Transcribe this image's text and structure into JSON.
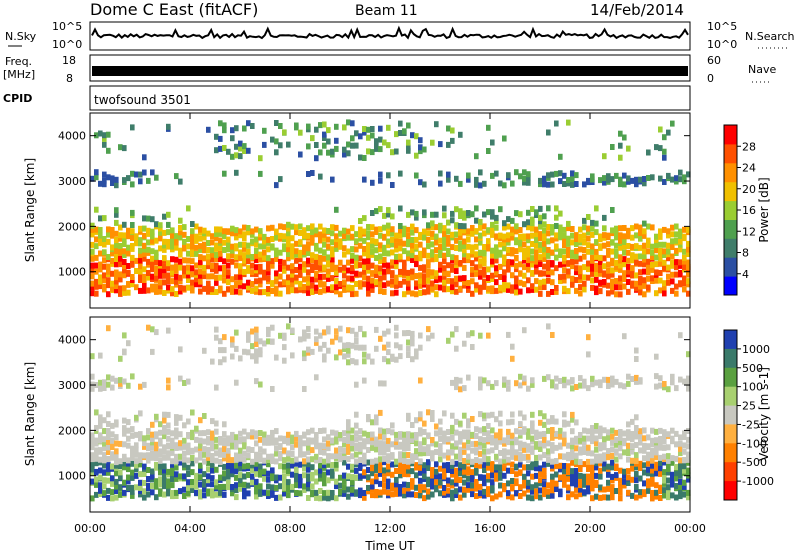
{
  "header": {
    "title": "Dome C East (fitACF)",
    "beam": "Beam 11",
    "date": "14/Feb/2014"
  },
  "panels": {
    "nsky": {
      "label": "N.Sky",
      "ticks": [
        "10^5",
        "10^0"
      ],
      "right_ticks": [
        "10^5",
        "10^0"
      ],
      "right_label": "N.Search"
    },
    "freq": {
      "label_line1": "Freq.",
      "label_line2": "[MHz]",
      "ticks": [
        "18",
        "8"
      ],
      "right_ticks": [
        "60",
        "0"
      ],
      "right_label": "Nave"
    },
    "cpid": {
      "label": "CPID",
      "text": "twofsound 3501"
    }
  },
  "colors": {
    "power": [
      "#0000ff",
      "#2b4fa3",
      "#3f7d6a",
      "#4fa04f",
      "#9acd32",
      "#f0c000",
      "#ff9000",
      "#ff5000",
      "#ff0000"
    ],
    "velocity": [
      "#2040b0",
      "#3a7a6a",
      "#5aa040",
      "#a8d070",
      "#c8c8c0",
      "#ffb040",
      "#ff8000",
      "#ff4000",
      "#ff0000"
    ]
  },
  "chart_data": [
    {
      "type": "heatmap",
      "title": "",
      "xlabel": "Time UT",
      "ylabel": "Slant Range [km]",
      "colorbar_label": "Power [dB]",
      "xlim": [
        0,
        24
      ],
      "ylim": [
        200,
        4500
      ],
      "x_ticks": [
        "00:00",
        "04:00",
        "08:00",
        "12:00",
        "16:00",
        "20:00",
        "00:00"
      ],
      "y_ticks": [
        "1000",
        "2000",
        "3000",
        "4000"
      ],
      "colorbar_ticks": [
        "4",
        "8",
        "12",
        "16",
        "20",
        "24",
        "28"
      ],
      "colorbar_range": [
        0,
        32
      ],
      "bands": [
        {
          "range_km": [
            500,
            1300
          ],
          "level": 26
        },
        {
          "range_km": [
            1300,
            2000
          ],
          "level": 20
        },
        {
          "range_km": [
            2000,
            2400
          ],
          "level": 12
        },
        {
          "range_km": [
            2900,
            3200
          ],
          "level": 8
        },
        {
          "range_km": [
            3500,
            4300
          ],
          "level": 10
        }
      ]
    },
    {
      "type": "heatmap",
      "title": "",
      "xlabel": "Time UT",
      "ylabel": "Slant Range [km]",
      "colorbar_label": "Velocity [m s-1]",
      "xlim": [
        0,
        24
      ],
      "ylim": [
        200,
        4500
      ],
      "x_ticks": [
        "00:00",
        "04:00",
        "08:00",
        "12:00",
        "16:00",
        "20:00",
        "00:00"
      ],
      "y_ticks": [
        "1000",
        "2000",
        "3000",
        "4000"
      ],
      "colorbar_ticks": [
        "1000",
        "500",
        "100",
        "25",
        "-25",
        "-100",
        "-500",
        "-1000"
      ],
      "bands": [
        {
          "range_km": [
            500,
            1300
          ],
          "velocity": 300
        },
        {
          "range_km": [
            1300,
            2000
          ],
          "velocity": 0
        },
        {
          "range_km": [
            2000,
            2400
          ],
          "velocity": 0
        },
        {
          "range_km": [
            2900,
            3200
          ],
          "velocity": 0
        },
        {
          "range_km": [
            3500,
            4300
          ],
          "velocity": 0
        }
      ]
    }
  ]
}
